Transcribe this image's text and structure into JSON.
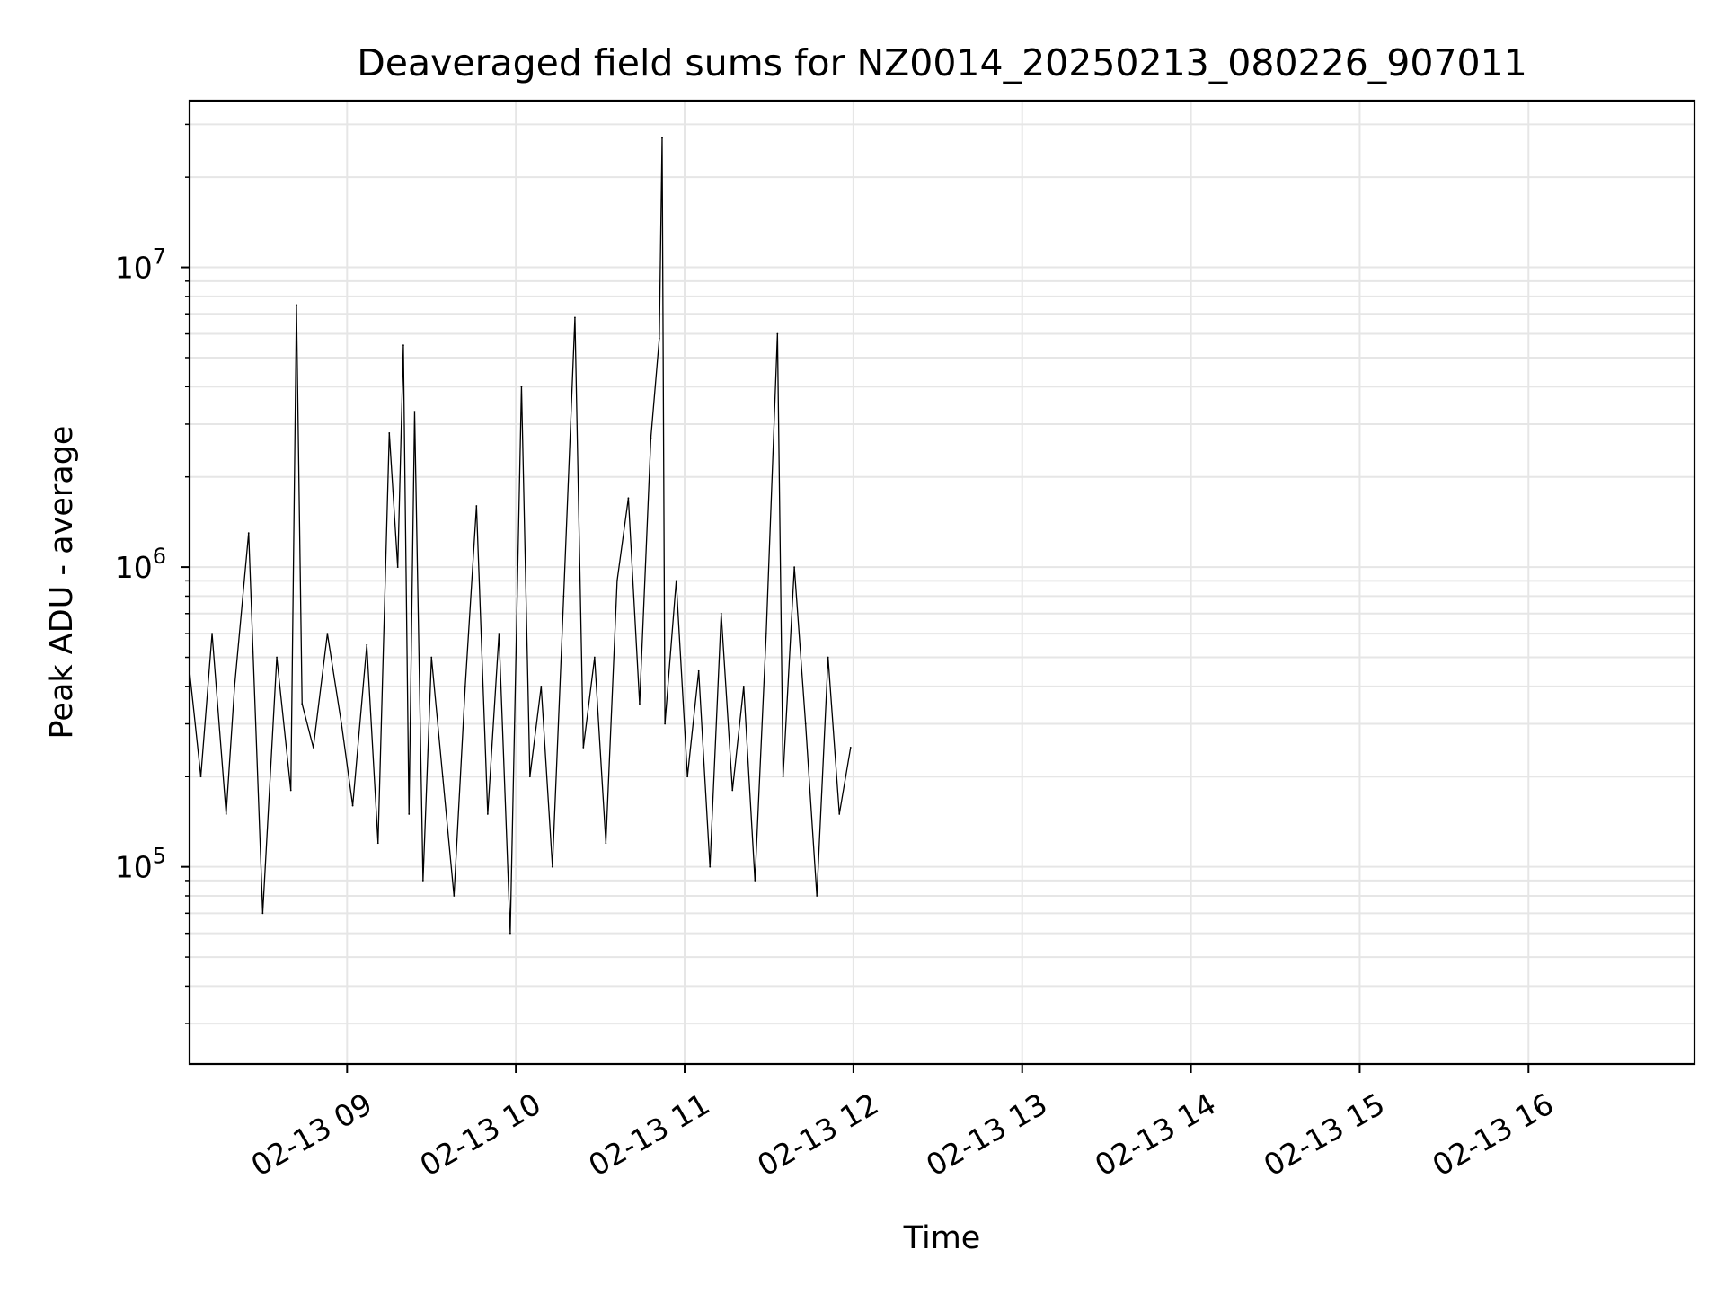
{
  "chart_data": {
    "type": "line",
    "title": "Deaveraged field sums for NZ0014_20250213_080226_907011",
    "xlabel": "Time",
    "ylabel": "Peak ADU - average",
    "x_range": [
      "2025-02-13 08:04",
      "2025-02-13 16:59"
    ],
    "y_scale": "log",
    "ylim": [
      22000,
      36000000
    ],
    "grid": "on (major and minor, x and y)",
    "line_color": "#000000",
    "grid_color": "#e6e6e6",
    "x_ticks": [
      {
        "t": "2025-02-13 09:00",
        "label": "02-13 09"
      },
      {
        "t": "2025-02-13 10:00",
        "label": "02-13 10"
      },
      {
        "t": "2025-02-13 11:00",
        "label": "02-13 11"
      },
      {
        "t": "2025-02-13 12:00",
        "label": "02-13 12"
      },
      {
        "t": "2025-02-13 13:00",
        "label": "02-13 13"
      },
      {
        "t": "2025-02-13 14:00",
        "label": "02-13 14"
      },
      {
        "t": "2025-02-13 15:00",
        "label": "02-13 15"
      },
      {
        "t": "2025-02-13 16:00",
        "label": "02-13 16"
      }
    ],
    "y_ticks": [
      {
        "value": 100000,
        "base": "10",
        "exp": "5"
      },
      {
        "value": 1000000,
        "base": "10",
        "exp": "6"
      },
      {
        "value": 10000000,
        "base": "10",
        "exp": "7"
      }
    ],
    "series": [
      {
        "points": [
          [
            "2025-02-13 08:04",
            450000
          ],
          [
            "2025-02-13 08:08",
            200000
          ],
          [
            "2025-02-13 08:12",
            600000
          ],
          [
            "2025-02-13 08:17",
            150000
          ],
          [
            "2025-02-13 08:20",
            400000
          ],
          [
            "2025-02-13 08:25",
            1300000
          ],
          [
            "2025-02-13 08:30",
            70000
          ],
          [
            "2025-02-13 08:35",
            500000
          ],
          [
            "2025-02-13 08:40",
            180000
          ],
          [
            "2025-02-13 08:42",
            7500000
          ],
          [
            "2025-02-13 08:44",
            350000
          ],
          [
            "2025-02-13 08:48",
            250000
          ],
          [
            "2025-02-13 08:53",
            600000
          ],
          [
            "2025-02-13 08:58",
            300000
          ],
          [
            "2025-02-13 09:02",
            160000
          ],
          [
            "2025-02-13 09:07",
            550000
          ],
          [
            "2025-02-13 09:11",
            120000
          ],
          [
            "2025-02-13 09:15",
            2800000
          ],
          [
            "2025-02-13 09:18",
            1000000
          ],
          [
            "2025-02-13 09:20",
            5500000
          ],
          [
            "2025-02-13 09:22",
            150000
          ],
          [
            "2025-02-13 09:24",
            3300000
          ],
          [
            "2025-02-13 09:27",
            90000
          ],
          [
            "2025-02-13 09:30",
            500000
          ],
          [
            "2025-02-13 09:34",
            200000
          ],
          [
            "2025-02-13 09:38",
            80000
          ],
          [
            "2025-02-13 09:42",
            400000
          ],
          [
            "2025-02-13 09:46",
            1600000
          ],
          [
            "2025-02-13 09:50",
            150000
          ],
          [
            "2025-02-13 09:54",
            600000
          ],
          [
            "2025-02-13 09:58",
            60000
          ],
          [
            "2025-02-13 10:02",
            4000000
          ],
          [
            "2025-02-13 10:05",
            200000
          ],
          [
            "2025-02-13 10:09",
            400000
          ],
          [
            "2025-02-13 10:13",
            100000
          ],
          [
            "2025-02-13 10:17",
            800000
          ],
          [
            "2025-02-13 10:21",
            6800000
          ],
          [
            "2025-02-13 10:24",
            250000
          ],
          [
            "2025-02-13 10:28",
            500000
          ],
          [
            "2025-02-13 10:32",
            120000
          ],
          [
            "2025-02-13 10:36",
            900000
          ],
          [
            "2025-02-13 10:40",
            1700000
          ],
          [
            "2025-02-13 10:44",
            350000
          ],
          [
            "2025-02-13 10:48",
            2700000
          ],
          [
            "2025-02-13 10:51",
            5800000
          ],
          [
            "2025-02-13 10:52",
            27000000
          ],
          [
            "2025-02-13 10:53",
            300000
          ],
          [
            "2025-02-13 10:57",
            900000
          ],
          [
            "2025-02-13 11:01",
            200000
          ],
          [
            "2025-02-13 11:05",
            450000
          ],
          [
            "2025-02-13 11:09",
            100000
          ],
          [
            "2025-02-13 11:13",
            700000
          ],
          [
            "2025-02-13 11:17",
            180000
          ],
          [
            "2025-02-13 11:21",
            400000
          ],
          [
            "2025-02-13 11:25",
            90000
          ],
          [
            "2025-02-13 11:29",
            600000
          ],
          [
            "2025-02-13 11:33",
            6000000
          ],
          [
            "2025-02-13 11:35",
            200000
          ],
          [
            "2025-02-13 11:39",
            1000000
          ],
          [
            "2025-02-13 11:43",
            300000
          ],
          [
            "2025-02-13 11:47",
            80000
          ],
          [
            "2025-02-13 11:51",
            500000
          ],
          [
            "2025-02-13 11:55",
            150000
          ],
          [
            "2025-02-13 11:59",
            250000
          ]
        ]
      }
    ]
  }
}
